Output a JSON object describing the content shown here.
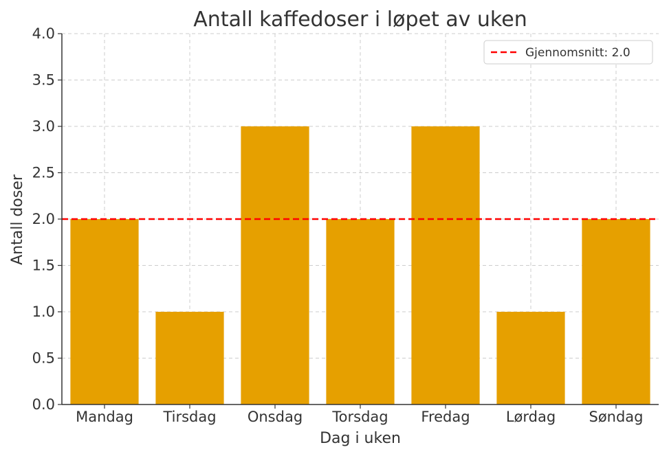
{
  "chart_data": {
    "type": "bar",
    "title": "Antall kaffedoser i løpet av uken",
    "xlabel": "Dag i uken",
    "ylabel": "Antall doser",
    "categories": [
      "Mandag",
      "Tirsdag",
      "Onsdag",
      "Torsdag",
      "Fredag",
      "Lørdag",
      "Søndag"
    ],
    "values": [
      2,
      1,
      3,
      2,
      3,
      1,
      2
    ],
    "ylim": [
      0,
      4
    ],
    "yticks": [
      "0.0",
      "0.5",
      "1.0",
      "1.5",
      "2.0",
      "2.5",
      "3.0",
      "3.5",
      "4.0"
    ],
    "grid": true,
    "bar_color": "#E6A000",
    "reference_line": {
      "label": "Gjennomsnitt: 2.0",
      "value": 2.0,
      "color": "#FF0000",
      "style": "dashed"
    },
    "legend_position": "top-right"
  }
}
